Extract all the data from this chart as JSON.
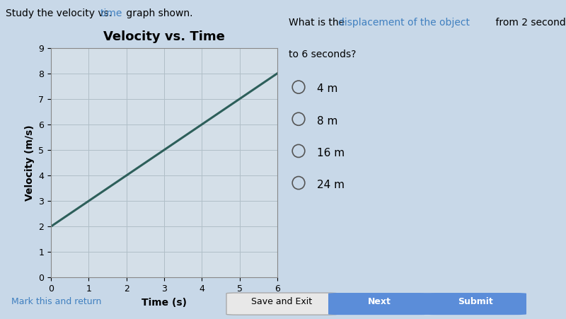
{
  "title": "Velocity vs. Time",
  "xlabel": "Time (s)",
  "ylabel": "Velocity (m/s)",
  "xlim": [
    0,
    6
  ],
  "ylim": [
    0,
    9
  ],
  "xticks": [
    0,
    1,
    2,
    3,
    4,
    5,
    6
  ],
  "yticks": [
    0,
    1,
    2,
    3,
    4,
    5,
    6,
    7,
    8,
    9
  ],
  "line_x": [
    0,
    6
  ],
  "line_y": [
    2,
    8
  ],
  "line_color": "#2d5f5a",
  "line_width": 2.2,
  "bg_color": "#c8d8e8",
  "plot_bg_color": "#d4dfe8",
  "grid_color": "#b0bfc8",
  "instruction_color_normal": "#000000",
  "instruction_highlight_color": "#4080c0",
  "question_highlight_color": "#4080c0",
  "choices": [
    "4 m",
    "8 m",
    "16 m",
    "24 m"
  ],
  "button_save": "Save and Exit",
  "button_next": "Next",
  "button_submit": "Submit",
  "button_next_color": "#5b8dd9",
  "button_submit_color": "#5b8dd9",
  "title_fontsize": 13,
  "axis_label_fontsize": 10,
  "tick_fontsize": 9,
  "instruction_fontsize": 10,
  "question_fontsize": 10,
  "choices_fontsize": 11,
  "mark_return_text": "Mark this and return",
  "mark_return_color": "#4080c0"
}
